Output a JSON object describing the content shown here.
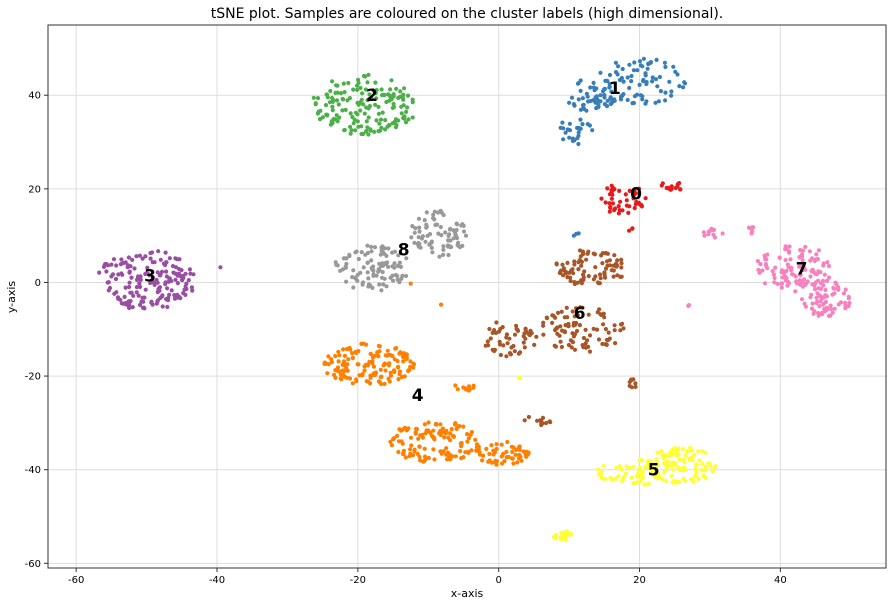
{
  "chart_data": {
    "type": "scatter",
    "title": "tSNE plot. Samples are coloured on the cluster labels (high dimensional).",
    "xlabel": "x-axis",
    "ylabel": "y-axis",
    "xlim": [
      -64,
      55
    ],
    "ylim": [
      -61,
      55
    ],
    "xticks": [
      -60,
      -40,
      -20,
      0,
      20,
      40
    ],
    "yticks": [
      -60,
      -40,
      -20,
      0,
      20,
      40
    ],
    "grid": true,
    "legend": "none",
    "clusters": [
      {
        "label": "0",
        "color": "#e41a1c",
        "label_pos": [
          19.5,
          19
        ],
        "blobs": [
          {
            "cx": 17.5,
            "cy": 18,
            "rx": 3.5,
            "ry": 3.5,
            "n": 45
          },
          {
            "cx": 24.5,
            "cy": 20.5,
            "rx": 1.8,
            "ry": 1,
            "n": 14
          },
          {
            "cx": 18.7,
            "cy": 11.5,
            "rx": 0.3,
            "ry": 0.6,
            "n": 3
          }
        ]
      },
      {
        "label": "1",
        "color": "#377eb8",
        "label_pos": [
          16.5,
          41.5
        ],
        "blobs": [
          {
            "cx": 20,
            "cy": 43,
            "rx": 6.5,
            "ry": 5,
            "n": 80
          },
          {
            "cx": 13,
            "cy": 40,
            "rx": 4,
            "ry": 3.5,
            "n": 50
          },
          {
            "cx": 11,
            "cy": 32.5,
            "rx": 2.5,
            "ry": 3,
            "n": 25
          },
          {
            "cx": 11,
            "cy": 10.5,
            "rx": 0.8,
            "ry": 1,
            "n": 3
          }
        ]
      },
      {
        "label": "2",
        "color": "#4daf4a",
        "label_pos": [
          -18,
          40
        ],
        "blobs": [
          {
            "cx": -19,
            "cy": 38,
            "rx": 7.5,
            "ry": 6.5,
            "n": 170
          }
        ]
      },
      {
        "label": "3",
        "color": "#984ea3",
        "label_pos": [
          -49.5,
          1.5
        ],
        "blobs": [
          {
            "cx": -50,
            "cy": 0.5,
            "rx": 7,
            "ry": 6.5,
            "n": 180
          },
          {
            "cx": -39.5,
            "cy": 3,
            "rx": 0.3,
            "ry": 0.3,
            "n": 1
          }
        ]
      },
      {
        "label": "4",
        "color": "#ff7f00",
        "label_pos": [
          -11.5,
          -24
        ],
        "blobs": [
          {
            "cx": -18.5,
            "cy": -17.5,
            "rx": 6.5,
            "ry": 4.5,
            "n": 140
          },
          {
            "cx": -9,
            "cy": -34,
            "rx": 6.5,
            "ry": 4.5,
            "n": 120
          },
          {
            "cx": 0.5,
            "cy": -36.5,
            "rx": 4,
            "ry": 2.5,
            "n": 55
          },
          {
            "cx": -5,
            "cy": -22.5,
            "rx": 1.8,
            "ry": 0.8,
            "n": 10
          },
          {
            "cx": -8,
            "cy": -4.5,
            "rx": 0.3,
            "ry": 0.3,
            "n": 1
          },
          {
            "cx": -12.5,
            "cy": 0,
            "rx": 0.3,
            "ry": 0.3,
            "n": 1
          }
        ]
      },
      {
        "label": "5",
        "color": "#ffff33",
        "label_pos": [
          22,
          -40
        ],
        "blobs": [
          {
            "cx": 26,
            "cy": -39,
            "rx": 5,
            "ry": 4,
            "n": 110
          },
          {
            "cx": 19,
            "cy": -40.5,
            "rx": 5,
            "ry": 3,
            "n": 55
          },
          {
            "cx": 9,
            "cy": -54,
            "rx": 1.5,
            "ry": 1.2,
            "n": 20
          },
          {
            "cx": 3,
            "cy": -20.5,
            "rx": 0.8,
            "ry": 0.3,
            "n": 3
          }
        ]
      },
      {
        "label": "6",
        "color": "#a65628",
        "label_pos": [
          11.5,
          -6.5
        ],
        "blobs": [
          {
            "cx": 13,
            "cy": 3,
            "rx": 5,
            "ry": 4,
            "n": 85
          },
          {
            "cx": 12,
            "cy": -10,
            "rx": 6,
            "ry": 5,
            "n": 90
          },
          {
            "cx": 1.5,
            "cy": -12,
            "rx": 4,
            "ry": 4,
            "n": 50
          },
          {
            "cx": 19,
            "cy": -21.5,
            "rx": 1,
            "ry": 1,
            "n": 8
          },
          {
            "cx": 5.5,
            "cy": -29.5,
            "rx": 2,
            "ry": 1,
            "n": 12
          }
        ]
      },
      {
        "label": "7",
        "color": "#f781bf",
        "label_pos": [
          43,
          3
        ],
        "blobs": [
          {
            "cx": 42,
            "cy": 3,
            "rx": 5.5,
            "ry": 5,
            "n": 110
          },
          {
            "cx": 46.5,
            "cy": -3.5,
            "rx": 3.5,
            "ry": 4,
            "n": 70
          },
          {
            "cx": 30.5,
            "cy": 10.5,
            "rx": 1.5,
            "ry": 1,
            "n": 12
          },
          {
            "cx": 36,
            "cy": 11.5,
            "rx": 0.5,
            "ry": 1.5,
            "n": 6
          },
          {
            "cx": 27,
            "cy": -5,
            "rx": 0.3,
            "ry": 0.3,
            "n": 2
          }
        ]
      },
      {
        "label": "8",
        "color": "#999999",
        "label_pos": [
          -13.5,
          7
        ],
        "blobs": [
          {
            "cx": -18,
            "cy": 3,
            "rx": 5.5,
            "ry": 5,
            "n": 100
          },
          {
            "cx": -8.5,
            "cy": 10.5,
            "rx": 4,
            "ry": 5,
            "n": 80
          }
        ]
      }
    ]
  }
}
